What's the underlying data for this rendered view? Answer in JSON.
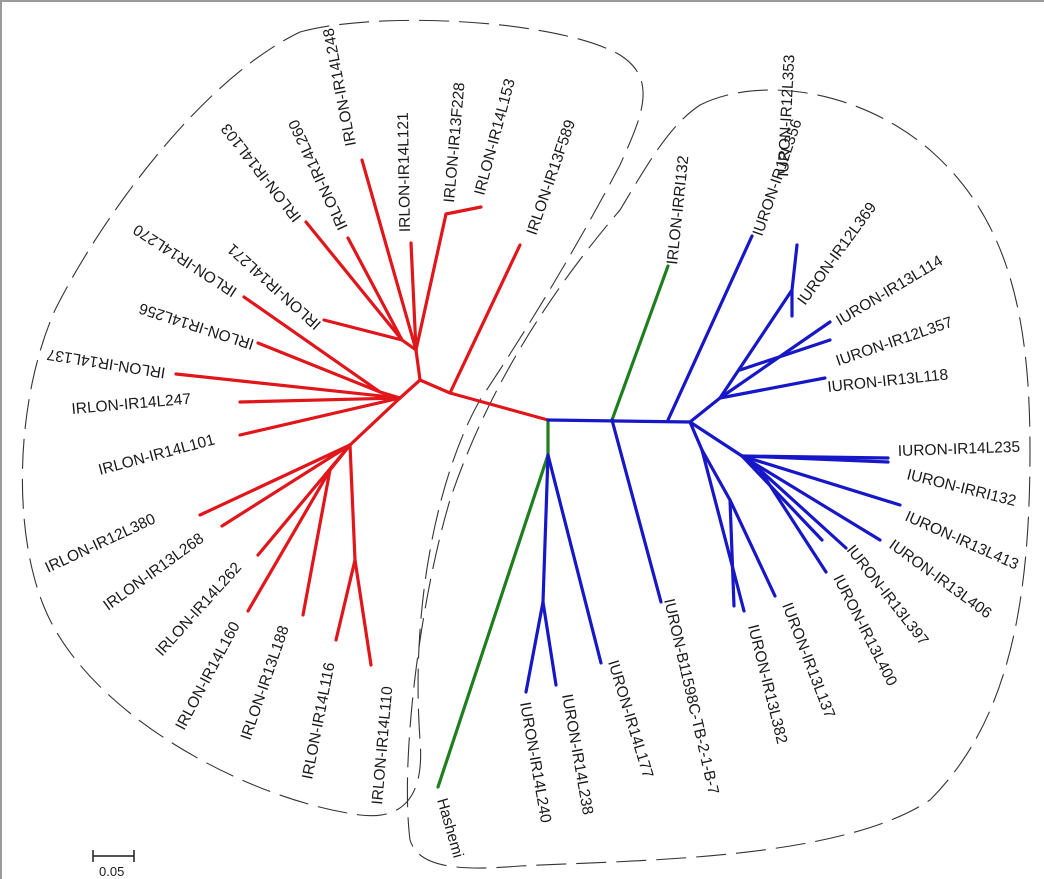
{
  "colors": {
    "red": "#e0161b",
    "blue": "#1717c8",
    "green": "#1f7f1f",
    "text": "#1a1a1a",
    "hull": "#333333"
  },
  "scale_bar": {
    "label": "0.05",
    "value": 0.05
  },
  "taxa": {
    "t1": "IRLON-IR13F589",
    "t2": "IRLON-IR14L153",
    "t3": "IRLON-IR13F228",
    "t4": "IRLON-IR14L121",
    "t5": "IRLON-IR14L248",
    "t6": "IRLON-IR14L260",
    "t7": "IRLON-IR14L103",
    "t8": "IRLON-IR14L271",
    "t9": "IRLON-IR14L270",
    "t10": "IRLON-IR14L256",
    "t11": "IRLON-IR14L137",
    "t12": "IRLON-IR14L247",
    "t13": "IRLON-IR14L101",
    "t14": "IRLON-IR12L380",
    "t15": "IRLON-IR13L268",
    "t16": "IRLON-IR14L262",
    "t17": "IRLON-IR14L160",
    "t18": "IRLON-IR13L188",
    "t19": "IRLON-IR14L116",
    "t20": "IRLON-IR14L110",
    "t21": "Hashemi",
    "t22": "IURON-IR14L240",
    "t23": "IURON-IR14L238",
    "t24": "IURON-IR14L177",
    "t25": "IURON-B11598C-TB-2-1-B-7",
    "t26": "IURON-IR13L382",
    "t27": "IURON-IR13L137",
    "t28": "IURON-IR13L400",
    "t29": "IURON-IR13L397",
    "t30": "IURON-IR13L406",
    "t31": "IURON-IR13L413",
    "t32": "IURON-IRRI132",
    "t33": "IURON-IR14L235",
    "t34": "IURON-IR13L118",
    "t35": "IURON-IR12L357",
    "t36": "IURON-IR13L114",
    "t37": "IURON-IR12L369",
    "t38": "IURON-IR12L356",
    "t39": "IURON-IR12L353",
    "t40": "IRLON-IRRI132"
  }
}
